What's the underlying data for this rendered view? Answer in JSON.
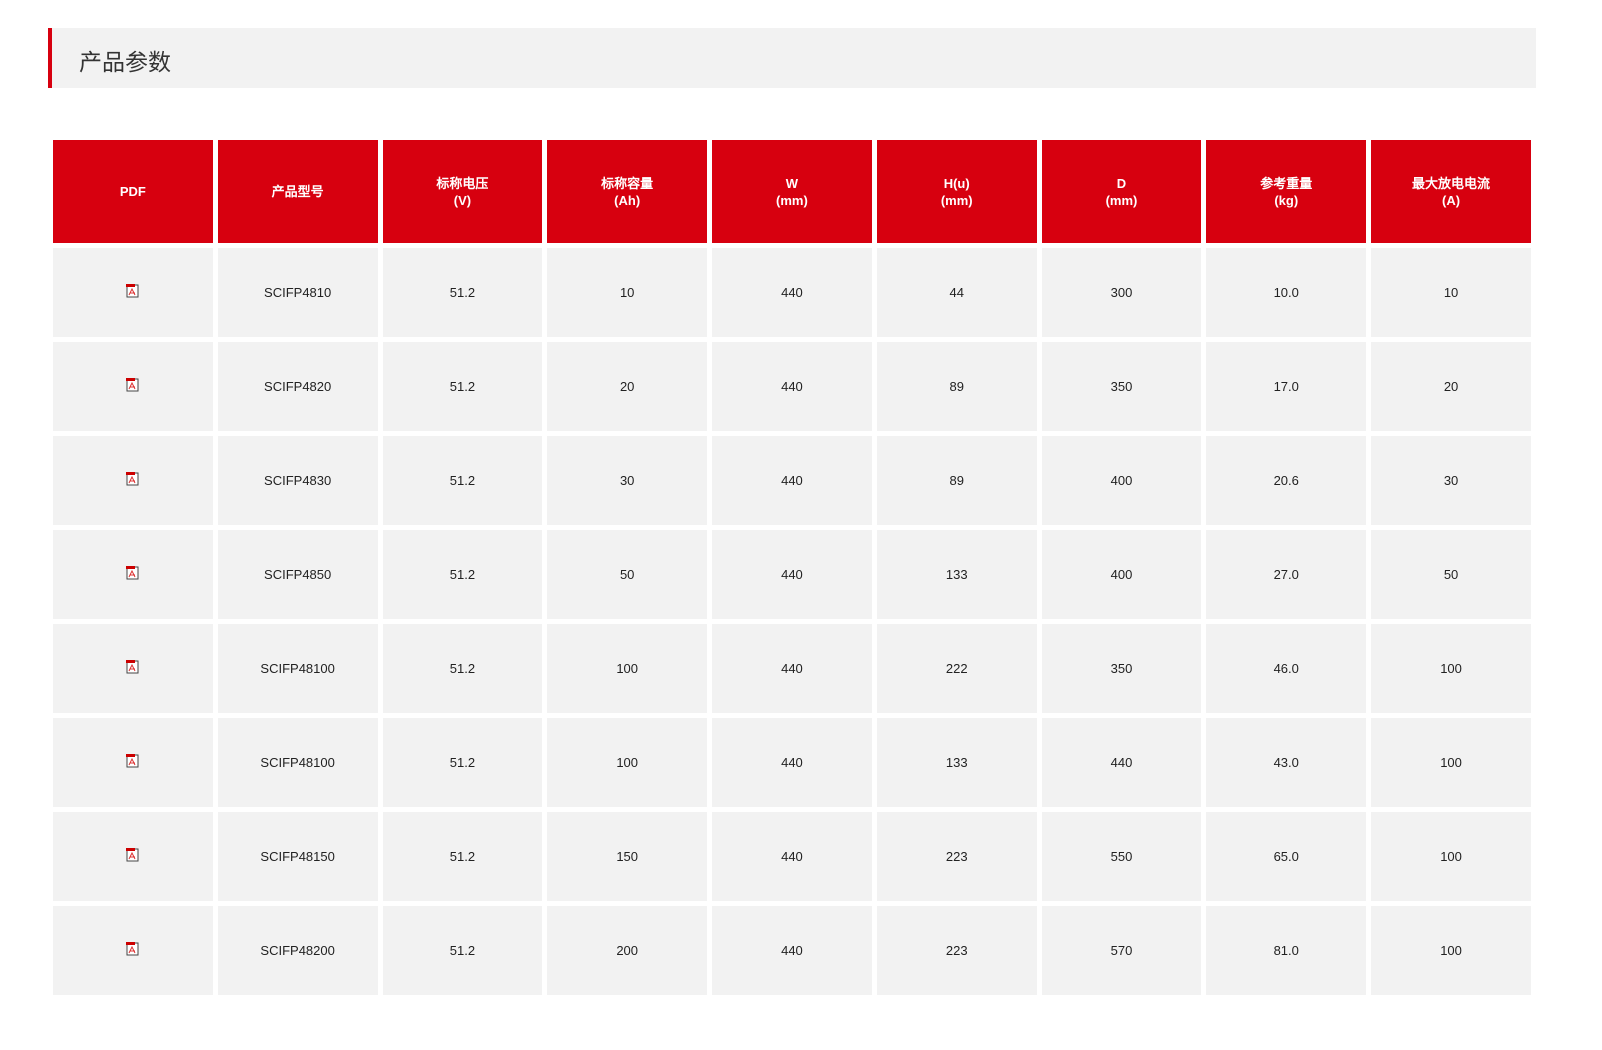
{
  "section_title": "产品参数",
  "colors": {
    "accent": "#d7000f",
    "cell_bg": "#f2f2f2"
  },
  "table": {
    "headers": [
      {
        "line1": "PDF",
        "line2": ""
      },
      {
        "line1": "产品型号",
        "line2": ""
      },
      {
        "line1": "标称电压",
        "line2": "(V)"
      },
      {
        "line1": "标称容量",
        "line2": "(Ah)"
      },
      {
        "line1": "W",
        "line2": "(mm)"
      },
      {
        "line1": "H(u)",
        "line2": "(mm)"
      },
      {
        "line1": "D",
        "line2": "(mm)"
      },
      {
        "line1": "参考重量",
        "line2": "(kg)"
      },
      {
        "line1": "最大放电电流",
        "line2": "(A)"
      }
    ],
    "pdf_icon": "pdf-file-icon",
    "rows": [
      [
        "SCIFP4810",
        "51.2",
        "10",
        "440",
        "44",
        "300",
        "10.0",
        "10"
      ],
      [
        "SCIFP4820",
        "51.2",
        "20",
        "440",
        "89",
        "350",
        "17.0",
        "20"
      ],
      [
        "SCIFP4830",
        "51.2",
        "30",
        "440",
        "89",
        "400",
        "20.6",
        "30"
      ],
      [
        "SCIFP4850",
        "51.2",
        "50",
        "440",
        "133",
        "400",
        "27.0",
        "50"
      ],
      [
        "SCIFP48100",
        "51.2",
        "100",
        "440",
        "222",
        "350",
        "46.0",
        "100"
      ],
      [
        "SCIFP48100",
        "51.2",
        "100",
        "440",
        "133",
        "440",
        "43.0",
        "100"
      ],
      [
        "SCIFP48150",
        "51.2",
        "150",
        "440",
        "223",
        "550",
        "65.0",
        "100"
      ],
      [
        "SCIFP48200",
        "51.2",
        "200",
        "440",
        "223",
        "570",
        "81.0",
        "100"
      ]
    ]
  }
}
